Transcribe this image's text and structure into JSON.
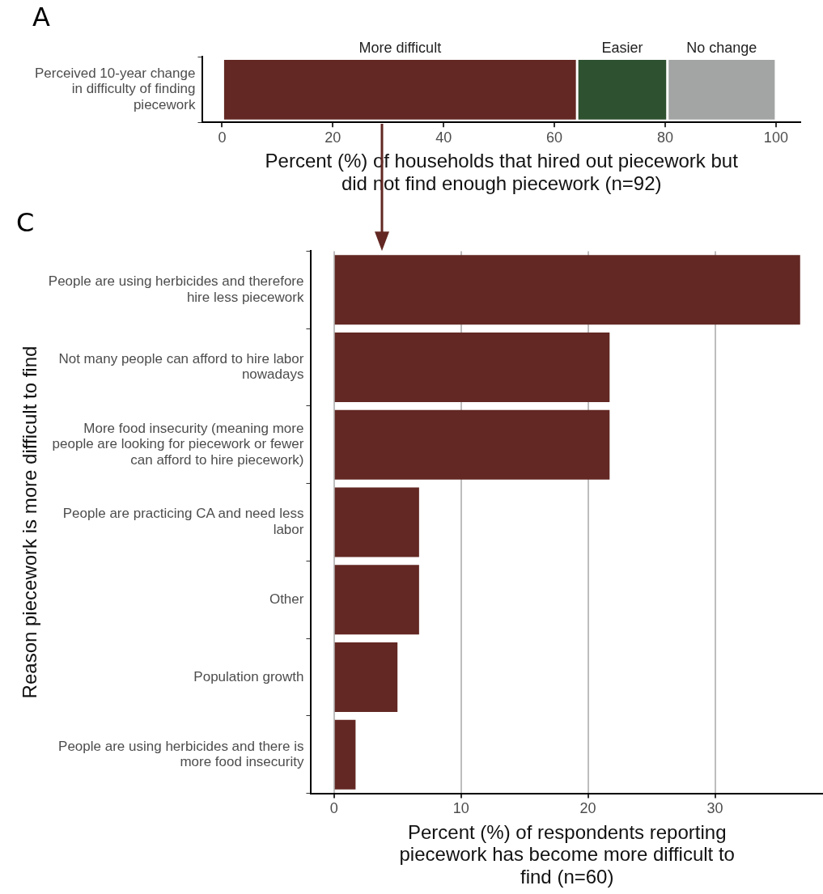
{
  "chart_data": [
    {
      "type": "bar",
      "title": "A",
      "orientation": "horizontal",
      "stacked": true,
      "categories": [
        "Perceived 10-year change in difficulty of finding piecework"
      ],
      "series": [
        {
          "name": "More difficult",
          "color": "#632823",
          "values": [
            64.1
          ]
        },
        {
          "name": "Easier",
          "color": "#2e5230",
          "values": [
            16.3
          ]
        },
        {
          "name": "No change",
          "color": "#a3a5a5",
          "values": [
            19.6
          ]
        }
      ],
      "xlim": [
        -3.5,
        104.4
      ],
      "xticks": [
        0,
        20,
        40,
        60,
        80,
        100
      ],
      "grid": false,
      "xlabel": "Percent (%) of households that hired out piecework but did not find enough piecework (n=92)"
    },
    {
      "type": "bar",
      "title": "C",
      "orientation": "horizontal",
      "categories": [
        "People are using herbicides and therefore hire less piecework",
        "Not many people can afford to hire labor nowadays",
        "More food insecurity (meaning more people are looking for piecework or fewer can afford to hire piecework)",
        "People are practicing CA and need less labor",
        "Other",
        "Population growth",
        "People are using herbicides and there is more food insecurity"
      ],
      "values": [
        36.7,
        21.7,
        21.7,
        6.7,
        6.7,
        5,
        1.7
      ],
      "color": "#632823",
      "xlim": [
        -1.8,
        38.5
      ],
      "xticks": [
        0,
        10,
        20,
        30
      ],
      "grid": "x",
      "xlabel": "Percent (%) of respondents reporting piecework has become more difficult to find (n=60)",
      "ylabel": "Reason piecework is more difficult to find"
    }
  ]
}
